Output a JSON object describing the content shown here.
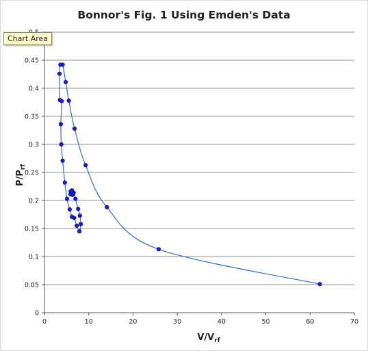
{
  "chart_data": {
    "type": "scatter",
    "title": "Bonnor's Fig. 1 Using Emden's Data",
    "xlabel": "V/V",
    "xlabel_sub": "rf",
    "ylabel": "P/P",
    "ylabel_sub": "rf",
    "xlim": [
      0,
      70
    ],
    "ylim": [
      0,
      0.5
    ],
    "x_ticks": [
      0,
      10,
      20,
      30,
      40,
      50,
      60,
      70
    ],
    "y_ticks": [
      0,
      0.05,
      0.1,
      0.15,
      0.2,
      0.25,
      0.3,
      0.35,
      0.4,
      0.45,
      0.5
    ],
    "grid": "horizontal",
    "legend": "none",
    "line_style": "smooth",
    "series": [
      {
        "color": "#2a6fd1",
        "marker_color": "#1a1ad6",
        "points": [
          {
            "x": 62.2,
            "y": 0.051
          },
          {
            "x": 25.8,
            "y": 0.113
          },
          {
            "x": 14.1,
            "y": 0.188
          },
          {
            "x": 9.3,
            "y": 0.263
          },
          {
            "x": 6.8,
            "y": 0.328
          },
          {
            "x": 5.5,
            "y": 0.378
          },
          {
            "x": 4.8,
            "y": 0.411
          },
          {
            "x": 4.1,
            "y": 0.442
          },
          {
            "x": 3.6,
            "y": 0.442
          },
          {
            "x": 3.4,
            "y": 0.426
          },
          {
            "x": 3.5,
            "y": 0.379
          },
          {
            "x": 3.9,
            "y": 0.377
          },
          {
            "x": 3.7,
            "y": 0.336
          },
          {
            "x": 3.8,
            "y": 0.3
          },
          {
            "x": 4.1,
            "y": 0.271
          },
          {
            "x": 4.6,
            "y": 0.232
          },
          {
            "x": 5.1,
            "y": 0.203
          },
          {
            "x": 5.7,
            "y": 0.184
          },
          {
            "x": 6.2,
            "y": 0.171
          },
          {
            "x": 6.7,
            "y": 0.169
          },
          {
            "x": 7.3,
            "y": 0.155
          },
          {
            "x": 7.9,
            "y": 0.145
          },
          {
            "x": 8.2,
            "y": 0.158
          },
          {
            "x": 8.0,
            "y": 0.173
          },
          {
            "x": 7.6,
            "y": 0.185
          },
          {
            "x": 7.0,
            "y": 0.203
          },
          {
            "x": 6.6,
            "y": 0.214
          },
          {
            "x": 6.2,
            "y": 0.218
          },
          {
            "x": 5.9,
            "y": 0.216
          },
          {
            "x": 5.9,
            "y": 0.211
          },
          {
            "x": 6.3,
            "y": 0.21
          },
          {
            "x": 6.5,
            "y": 0.212
          }
        ]
      }
    ]
  },
  "tooltip": "Chart Area"
}
